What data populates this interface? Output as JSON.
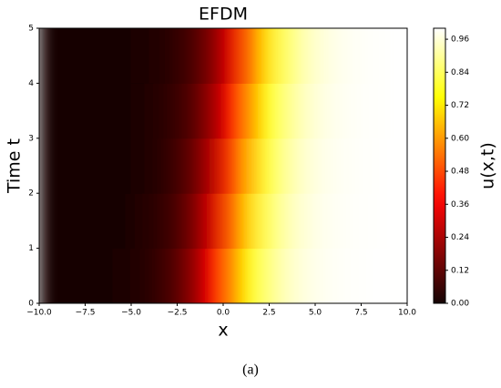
{
  "chart_data": {
    "type": "heatmap",
    "title": "EFDM",
    "xlabel": "x",
    "ylabel": "Time t",
    "colorbar_label": "u(x,t)",
    "caption": "(a)",
    "colormap": "hot",
    "x": [
      -9.5,
      -8.5,
      -7.5,
      -6.5,
      -5.5,
      -4.5,
      -3.5,
      -2.5,
      -1.5,
      -0.5,
      0.5,
      1.5,
      2.5,
      3.5,
      4.5,
      5.5,
      6.5,
      7.5,
      8.5,
      9.5
    ],
    "y": [
      0.5,
      1.5,
      2.5,
      3.5,
      4.5
    ],
    "z": [
      [
        0.0,
        0.001,
        0.002,
        0.005,
        0.011,
        0.024,
        0.051,
        0.107,
        0.211,
        0.373,
        0.57,
        0.746,
        0.868,
        0.936,
        0.97,
        0.986,
        0.994,
        0.997,
        0.999,
        0.999
      ],
      [
        0.0,
        0.001,
        0.002,
        0.004,
        0.008,
        0.019,
        0.041,
        0.086,
        0.174,
        0.319,
        0.51,
        0.698,
        0.838,
        0.92,
        0.962,
        0.983,
        0.992,
        0.996,
        0.998,
        0.999
      ],
      [
        0.0,
        0.001,
        0.001,
        0.003,
        0.007,
        0.015,
        0.032,
        0.069,
        0.142,
        0.269,
        0.45,
        0.646,
        0.802,
        0.9,
        0.953,
        0.978,
        0.99,
        0.995,
        0.998,
        0.999
      ],
      [
        0.0,
        0.0,
        0.001,
        0.002,
        0.005,
        0.012,
        0.026,
        0.055,
        0.115,
        0.224,
        0.392,
        0.589,
        0.761,
        0.877,
        0.94,
        0.972,
        0.987,
        0.994,
        0.997,
        0.999
      ],
      [
        0.0,
        0.0,
        0.001,
        0.002,
        0.004,
        0.009,
        0.02,
        0.044,
        0.093,
        0.185,
        0.336,
        0.53,
        0.715,
        0.848,
        0.926,
        0.965,
        0.984,
        0.993,
        0.997,
        0.999
      ]
    ],
    "xlim": [
      -10,
      10
    ],
    "xticks": [
      {
        "value": -10,
        "label": "−10.0"
      },
      {
        "value": -7.5,
        "label": "−7.5"
      },
      {
        "value": -5,
        "label": "−5.0"
      },
      {
        "value": -2.5,
        "label": "−2.5"
      },
      {
        "value": 0,
        "label": "0.0"
      },
      {
        "value": 2.5,
        "label": "2.5"
      },
      {
        "value": 5,
        "label": "5.0"
      },
      {
        "value": 7.5,
        "label": "7.5"
      },
      {
        "value": 10,
        "label": "10.0"
      }
    ],
    "ylim": [
      0,
      5
    ],
    "yticks": [
      0,
      1,
      2,
      3,
      4,
      5
    ],
    "zlim": [
      0,
      1
    ],
    "zticks": [
      {
        "value": 0,
        "label": "0.00"
      },
      {
        "value": 0.12,
        "label": "0.12"
      },
      {
        "value": 0.24,
        "label": "0.24"
      },
      {
        "value": 0.36,
        "label": "0.36"
      },
      {
        "value": 0.48,
        "label": "0.48"
      },
      {
        "value": 0.6,
        "label": "0.60"
      },
      {
        "value": 0.72,
        "label": "0.72"
      },
      {
        "value": 0.84,
        "label": "0.84"
      },
      {
        "value": 0.96,
        "label": "0.96"
      }
    ]
  }
}
